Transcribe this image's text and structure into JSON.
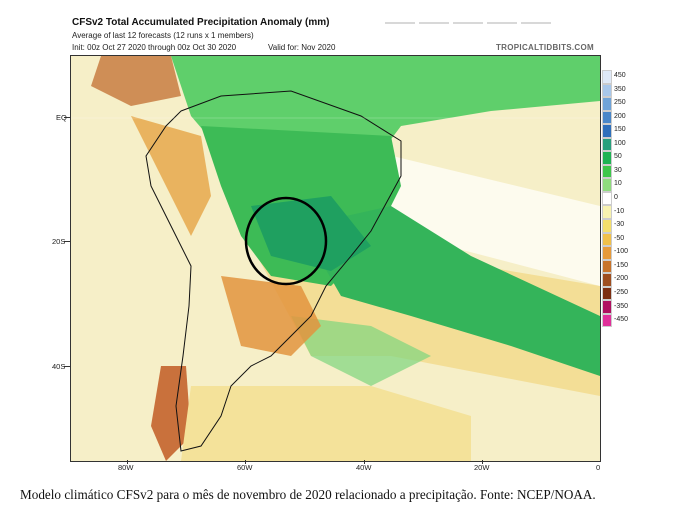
{
  "header": {
    "title": "CFSv2 Total Accumulated Precipitation Anomaly (mm)",
    "line1": "Average of last 12 forecasts (12 runs x 1 members)",
    "line2": "Init: 00z Oct 27 2020 through 00z Oct 30 2020",
    "valid": "Valid for: Nov 2020",
    "credit": "TROPICALTIDBITS.COM"
  },
  "axes": {
    "lat_labels": [
      "EQ",
      "20S",
      "40S"
    ],
    "lon_labels": [
      "80W",
      "60W",
      "40W",
      "20W",
      "0"
    ]
  },
  "legend": {
    "labels": [
      "450",
      "350",
      "250",
      "200",
      "150",
      "100",
      "50",
      "30",
      "10",
      "0",
      "-10",
      "-30",
      "-50",
      "-100",
      "-150",
      "-200",
      "-250",
      "-350",
      "-450"
    ],
    "colors": [
      "#dfe9f7",
      "#a8c7ea",
      "#6fa3d8",
      "#4a87c9",
      "#2f6fbb",
      "#28a07d",
      "#1fb354",
      "#3ec64a",
      "#8fdc7e",
      "#ffffff",
      "#f7f2b0",
      "#f4df6c",
      "#f0c04a",
      "#e69a3b",
      "#c8742c",
      "#9e4e20",
      "#7c2e12",
      "#b01060",
      "#e0309a"
    ]
  },
  "caption": "Modelo climático CFSv2 para o mês de novembro de 2020 relacionado a precipitação. Fonte: NCEP/NOAA."
}
